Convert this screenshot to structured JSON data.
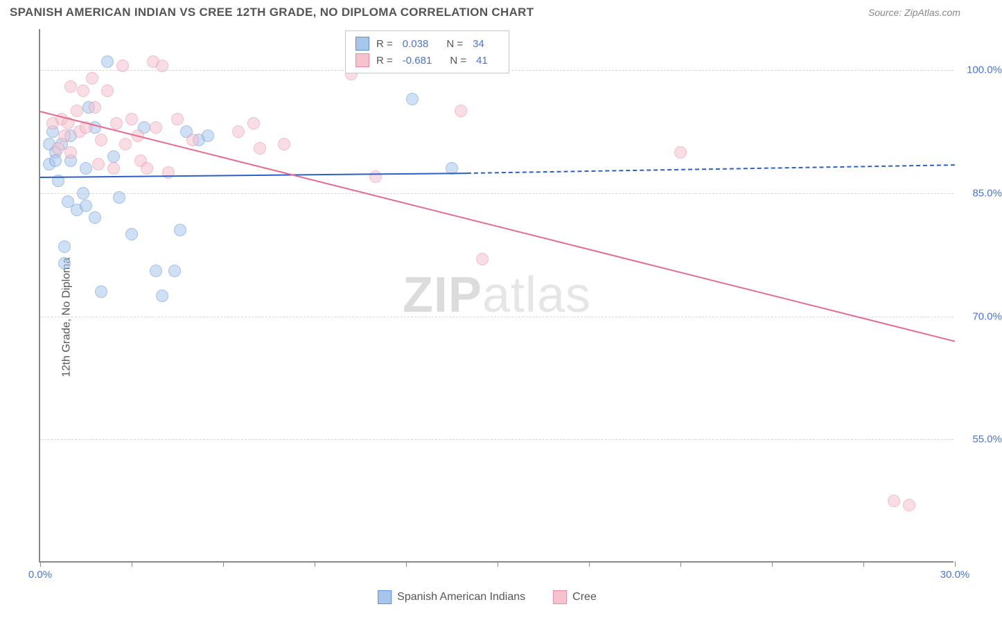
{
  "header": {
    "title": "SPANISH AMERICAN INDIAN VS CREE 12TH GRADE, NO DIPLOMA CORRELATION CHART",
    "source": "Source: ZipAtlas.com"
  },
  "ylabel": "12th Grade, No Diploma",
  "watermark": {
    "bold": "ZIP",
    "light": "atlas"
  },
  "chart": {
    "type": "scatter",
    "xlim": [
      0,
      30
    ],
    "ylim": [
      40,
      105
    ],
    "x_ticks": [
      0,
      3,
      6,
      9,
      12,
      15,
      18,
      21,
      24,
      27,
      30
    ],
    "x_tick_labels_shown": {
      "0": "0.0%",
      "30": "30.0%"
    },
    "y_gridlines": [
      55,
      70,
      85,
      100
    ],
    "y_tick_labels": {
      "55": "55.0%",
      "70": "70.0%",
      "85": "85.0%",
      "100": "100.0%"
    },
    "grid_color": "#d8d8d8",
    "background_color": "#ffffff",
    "series": [
      {
        "key": "series1",
        "label": "Spanish American Indians",
        "fill_color": "#a8c6ec",
        "stroke_color": "#5b8fd6",
        "line_color": "#2a5fc9",
        "marker_radius": 9,
        "fill_opacity": 0.55,
        "r": "0.038",
        "n": "34",
        "trend": {
          "x1": 0,
          "y1": 87.0,
          "x2": 14,
          "y2": 87.5,
          "dashed_to_x": 30,
          "dashed_to_y": 88.5
        },
        "points": [
          [
            0.3,
            88.5
          ],
          [
            0.3,
            91.0
          ],
          [
            0.4,
            92.5
          ],
          [
            0.5,
            90.0
          ],
          [
            0.5,
            89.0
          ],
          [
            0.6,
            86.5
          ],
          [
            0.7,
            91.0
          ],
          [
            0.8,
            78.5
          ],
          [
            0.8,
            76.5
          ],
          [
            0.9,
            84.0
          ],
          [
            1.0,
            92.0
          ],
          [
            1.0,
            89.0
          ],
          [
            1.2,
            83.0
          ],
          [
            1.4,
            85.0
          ],
          [
            1.5,
            88.0
          ],
          [
            1.5,
            83.5
          ],
          [
            1.6,
            95.5
          ],
          [
            1.8,
            82.0
          ],
          [
            1.8,
            93.0
          ],
          [
            2.0,
            73.0
          ],
          [
            2.2,
            101.0
          ],
          [
            2.4,
            89.5
          ],
          [
            2.6,
            84.5
          ],
          [
            3.0,
            80.0
          ],
          [
            3.4,
            93.0
          ],
          [
            3.8,
            75.5
          ],
          [
            4.0,
            72.5
          ],
          [
            4.4,
            75.5
          ],
          [
            4.6,
            80.5
          ],
          [
            4.8,
            92.5
          ],
          [
            5.2,
            91.5
          ],
          [
            5.5,
            92.0
          ],
          [
            12.2,
            96.5
          ],
          [
            13.5,
            88.0
          ]
        ]
      },
      {
        "key": "series2",
        "label": "Cree",
        "fill_color": "#f5c2ce",
        "stroke_color": "#e78aa4",
        "line_color": "#e56b8f",
        "marker_radius": 9,
        "fill_opacity": 0.55,
        "r": "-0.681",
        "n": "41",
        "trend": {
          "x1": 0,
          "y1": 95.0,
          "x2": 30,
          "y2": 67.0
        },
        "points": [
          [
            0.4,
            93.5
          ],
          [
            0.6,
            90.5
          ],
          [
            0.7,
            94.0
          ],
          [
            0.8,
            92.0
          ],
          [
            0.9,
            93.5
          ],
          [
            1.0,
            98.0
          ],
          [
            1.0,
            90.0
          ],
          [
            1.2,
            95.0
          ],
          [
            1.3,
            92.5
          ],
          [
            1.4,
            97.5
          ],
          [
            1.5,
            93.0
          ],
          [
            1.7,
            99.0
          ],
          [
            1.8,
            95.5
          ],
          [
            1.9,
            88.5
          ],
          [
            2.0,
            91.5
          ],
          [
            2.2,
            97.5
          ],
          [
            2.4,
            88.0
          ],
          [
            2.5,
            93.5
          ],
          [
            2.7,
            100.5
          ],
          [
            2.8,
            91.0
          ],
          [
            3.0,
            94.0
          ],
          [
            3.2,
            92.0
          ],
          [
            3.3,
            89.0
          ],
          [
            3.5,
            88.0
          ],
          [
            3.7,
            101.0
          ],
          [
            3.8,
            93.0
          ],
          [
            4.0,
            100.5
          ],
          [
            4.2,
            87.5
          ],
          [
            4.5,
            94.0
          ],
          [
            5.0,
            91.5
          ],
          [
            6.5,
            92.5
          ],
          [
            7.0,
            93.5
          ],
          [
            7.2,
            90.5
          ],
          [
            8.0,
            91.0
          ],
          [
            10.2,
            99.5
          ],
          [
            11.0,
            87.0
          ],
          [
            13.8,
            95.0
          ],
          [
            14.5,
            77.0
          ],
          [
            21.0,
            90.0
          ],
          [
            28.0,
            47.5
          ],
          [
            28.5,
            47.0
          ]
        ]
      }
    ]
  },
  "legend_top": {
    "r_label": "R =",
    "n_label": "N ="
  },
  "legend_bottom": [
    {
      "label_key": "chart.series.0.label",
      "fill": "#a8c6ec",
      "stroke": "#5b8fd6"
    },
    {
      "label_key": "chart.series.1.label",
      "fill": "#f5c2ce",
      "stroke": "#e78aa4"
    }
  ]
}
